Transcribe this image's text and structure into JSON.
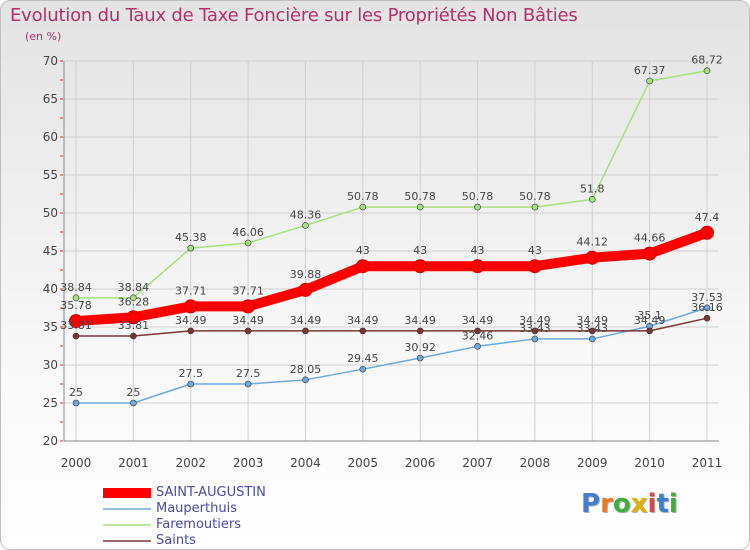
{
  "header": {
    "title": "Evolution du Taux de Taxe Foncière sur les Propriétés Non Bâties",
    "subtitle": "(en %)"
  },
  "chart_data": {
    "type": "line",
    "title": "Evolution du Taux de Taxe Foncière sur les Propriétés Non Bâties",
    "ylabel": "(en %)",
    "xlabel": "",
    "ylim": [
      20,
      70
    ],
    "yticks": [
      20,
      25,
      30,
      35,
      40,
      45,
      50,
      55,
      60,
      65,
      70
    ],
    "grid": true,
    "legend_position": "bottom-left",
    "x": [
      2000,
      2001,
      2002,
      2003,
      2004,
      2005,
      2006,
      2007,
      2008,
      2009,
      2010,
      2011
    ],
    "series": [
      {
        "name": "SAINT-AUGUSTIN",
        "color": "#ff0000",
        "values": [
          35.78,
          36.28,
          37.71,
          37.71,
          39.88,
          43,
          43,
          43,
          43,
          44.12,
          44.66,
          47.4
        ],
        "labels": [
          "35.78",
          "36.28",
          "37.71",
          "37.71",
          "39.88",
          "43",
          "43",
          "43",
          "43",
          "44.12",
          "44.66",
          "47.4"
        ]
      },
      {
        "name": "Mauperthuis",
        "color": "#6fa8dc",
        "values": [
          25,
          25,
          27.5,
          27.5,
          28.05,
          29.45,
          30.92,
          32.46,
          33.43,
          33.43,
          35.1,
          37.53
        ],
        "labels": [
          "25",
          "25",
          "27.5",
          "27.5",
          "28.05",
          "29.45",
          "30.92",
          "32.46",
          "33.43",
          "33.43",
          "35.1",
          "37.53"
        ]
      },
      {
        "name": "Faremoutiers",
        "color": "#a8df7e",
        "values": [
          38.84,
          38.84,
          45.38,
          46.06,
          48.36,
          50.78,
          50.78,
          50.78,
          50.78,
          51.8,
          67.37,
          68.72
        ],
        "labels": [
          "38.84",
          "38.84",
          "45.38",
          "46.06",
          "48.36",
          "50.78",
          "50.78",
          "50.78",
          "50.78",
          "51.8",
          "67.37",
          "68.72"
        ]
      },
      {
        "name": "Saints",
        "color": "#7a3535",
        "values": [
          33.81,
          33.81,
          34.49,
          34.49,
          34.49,
          34.49,
          34.49,
          34.49,
          34.49,
          34.49,
          34.49,
          36.16
        ],
        "labels": [
          "33.81",
          "33.81",
          "34.49",
          "34.49",
          "34.49",
          "34.49",
          "34.49",
          "34.49",
          "34.49",
          "34.49",
          "34.49",
          "36.16"
        ]
      }
    ]
  },
  "legend": {
    "items": [
      {
        "label": "SAINT-AUGUSTIN"
      },
      {
        "label": "Mauperthuis"
      },
      {
        "label": "Faremoutiers"
      },
      {
        "label": "Saints"
      }
    ]
  },
  "logo": {
    "letters": [
      "P",
      "r",
      "o",
      "x",
      "i",
      "t",
      "i"
    ],
    "colors": [
      "#3f7fd0",
      "#e87b2b",
      "#3fae3f",
      "#e0b010",
      "#d14b4b",
      "#3f7fd0",
      "#3fae3f"
    ]
  }
}
